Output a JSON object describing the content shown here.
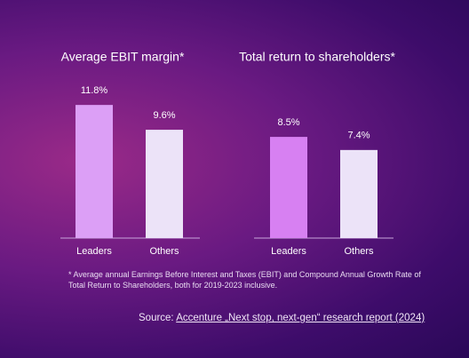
{
  "chart_data": [
    {
      "type": "bar",
      "title": "Average EBIT margin*",
      "categories": [
        "Leaders",
        "Others"
      ],
      "values": [
        11.8,
        9.6
      ],
      "value_labels": [
        "11.8%",
        "9.6%"
      ],
      "colors": [
        "#dc9ff6",
        "#ece3f8"
      ]
    },
    {
      "type": "bar",
      "title": "Total return to shareholders*",
      "categories": [
        "Leaders",
        "Others"
      ],
      "values": [
        8.5,
        7.4
      ],
      "value_labels": [
        "8.5%",
        "7.4%"
      ],
      "colors": [
        "#d780f2",
        "#ece3f8"
      ]
    }
  ],
  "footnote": "* Average annual Earnings Before Interest and Taxes (EBIT) and Compound Annual Growth Rate of Total Return to Shareholders, both for 2019-2023 inclusive.",
  "source": {
    "prefix": "Source:",
    "link": "Accenture „Next stop, next-gen“ research report (2024)"
  }
}
